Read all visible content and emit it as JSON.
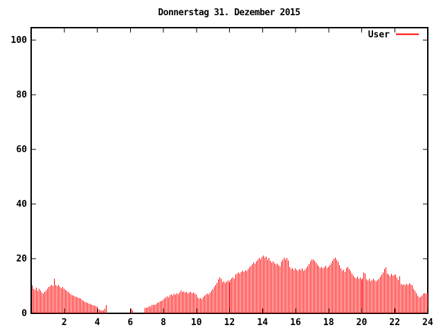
{
  "title": "Donnerstag 31. Dezember 2015",
  "legend": {
    "label": "User"
  },
  "colors": {
    "series": "#ff0000",
    "axis": "#000000",
    "background": "#ffffff",
    "text": "#000000"
  },
  "chart_data": {
    "type": "bar",
    "style": "impulses",
    "title": "Donnerstag 31. Dezember 2015",
    "xlabel": "",
    "ylabel": "",
    "x_unit": "hour of day",
    "x_range": [
      0,
      24
    ],
    "y_range": [
      0,
      100
    ],
    "x_ticks": [
      2,
      4,
      6,
      8,
      10,
      12,
      14,
      16,
      18,
      20,
      22,
      24
    ],
    "y_ticks": [
      0,
      20,
      40,
      60,
      80,
      100
    ],
    "grid": false,
    "legend_position": "top-right-inside",
    "series": [
      {
        "name": "User",
        "color": "#ff0000",
        "sample_minutes": 5,
        "x_step_hours": 0.08333,
        "values": [
          10.2,
          9.0,
          8.6,
          9.4,
          8.2,
          9.0,
          8.4,
          7.6,
          7.2,
          7.8,
          8.4,
          9.0,
          9.6,
          10.0,
          10.4,
          10.0,
          12.6,
          10.4,
          10.0,
          10.4,
          9.8,
          9.2,
          9.6,
          9.0,
          8.6,
          8.2,
          7.8,
          7.4,
          7.0,
          6.6,
          6.4,
          6.2,
          6.0,
          5.8,
          5.6,
          5.4,
          5.0,
          4.6,
          4.2,
          4.0,
          3.8,
          3.6,
          3.4,
          3.2,
          3.0,
          2.8,
          2.6,
          2.4,
          1.6,
          1.4,
          1.2,
          1.0,
          1.2,
          1.6,
          3.0,
          0,
          0,
          0,
          0,
          0,
          0,
          0,
          0,
          0,
          0,
          0,
          0,
          0,
          0,
          0,
          0,
          0,
          1.8,
          1.2,
          0,
          0,
          0,
          0,
          0,
          0,
          0,
          0,
          2.0,
          2.0,
          2.2,
          2.6,
          2.4,
          3.0,
          3.2,
          3.0,
          3.4,
          3.8,
          4.0,
          4.4,
          4.6,
          5.0,
          5.4,
          5.8,
          6.2,
          5.8,
          6.6,
          7.0,
          6.6,
          7.2,
          6.8,
          7.4,
          7.0,
          7.6,
          8.4,
          7.8,
          8.0,
          7.6,
          7.8,
          7.4,
          7.6,
          7.8,
          7.4,
          7.6,
          7.2,
          6.8,
          5.8,
          5.4,
          5.6,
          5.2,
          6.0,
          6.4,
          6.8,
          7.2,
          7.0,
          7.6,
          8.2,
          8.8,
          9.6,
          10.4,
          11.2,
          12.4,
          13.2,
          12.6,
          11.4,
          11.8,
          11.2,
          11.6,
          12.0,
          11.4,
          12.2,
          12.8,
          13.2,
          12.6,
          14.2,
          14.6,
          15.0,
          14.6,
          15.2,
          15.6,
          15.2,
          15.8,
          15.4,
          16.2,
          16.8,
          17.4,
          18.0,
          18.6,
          18.2,
          19.0,
          19.6,
          20.2,
          19.8,
          20.6,
          21.2,
          20.4,
          20.8,
          19.6,
          20.2,
          19.2,
          18.6,
          19.0,
          18.4,
          17.8,
          18.2,
          17.6,
          17.2,
          18.8,
          19.6,
          20.4,
          19.8,
          20.2,
          19.4,
          17.0,
          16.2,
          16.6,
          15.8,
          16.4,
          16.0,
          15.6,
          16.2,
          15.8,
          16.4,
          15.6,
          16.0,
          16.6,
          17.2,
          18.0,
          19.0,
          19.6,
          19.8,
          19.2,
          18.6,
          17.8,
          17.2,
          16.6,
          17.0,
          16.4,
          16.8,
          17.4,
          16.6,
          17.0,
          17.6,
          18.4,
          19.2,
          20.0,
          20.4,
          19.6,
          18.8,
          17.6,
          16.4,
          15.6,
          16.0,
          15.2,
          16.6,
          17.0,
          16.2,
          15.4,
          14.6,
          13.8,
          13.2,
          12.8,
          13.4,
          12.6,
          13.0,
          12.4,
          12.8,
          15.0,
          14.6,
          12.4,
          12.0,
          12.6,
          11.8,
          12.2,
          12.6,
          12.0,
          11.6,
          12.2,
          12.6,
          13.4,
          14.2,
          15.0,
          16.2,
          16.8,
          14.6,
          14.2,
          13.6,
          14.4,
          13.8,
          14.0,
          14.2,
          13.0,
          12.2,
          13.6,
          10.8,
          10.4,
          10.6,
          10.2,
          10.8,
          10.4,
          11.0,
          10.6,
          10.2,
          9.0,
          8.2,
          7.4,
          6.4,
          5.8,
          6.0,
          6.4,
          7.2,
          7.4,
          7.2,
          7.4
        ]
      }
    ]
  }
}
